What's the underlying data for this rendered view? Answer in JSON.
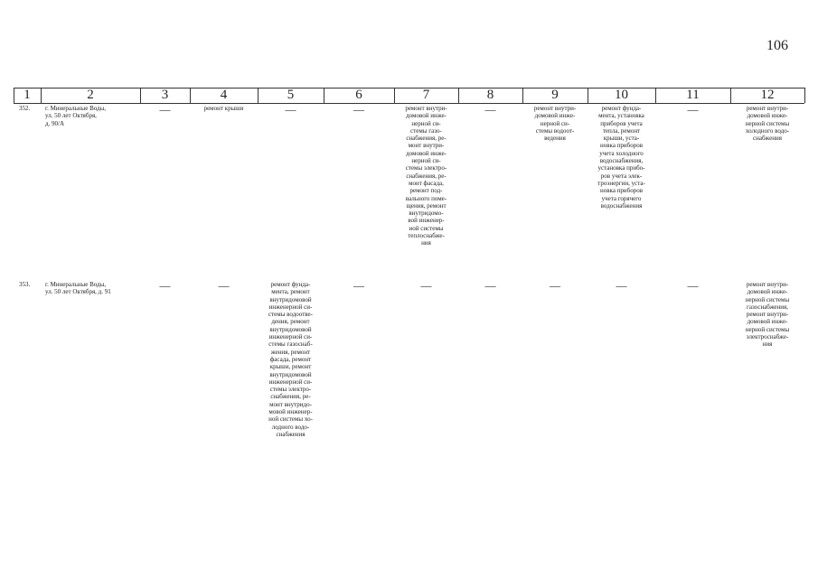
{
  "page_number": "106",
  "table": {
    "header": [
      "1",
      "2",
      "3",
      "4",
      "5",
      "6",
      "7",
      "8",
      "9",
      "10",
      "11",
      "12"
    ],
    "rows": [
      [
        [
          "352."
        ],
        [
          "г. Минеральные Воды,",
          "ул. 50 лет Октября,",
          "д. 90/А"
        ],
        [
          "—"
        ],
        [
          "ремонт крыши"
        ],
        [
          "—"
        ],
        [
          "—"
        ],
        [
          "ремонт внутри-",
          "домовой инже-",
          "нерной си-",
          "стемы газо-",
          "снабжения, ре-",
          "монт внутри-",
          "домовой инже-",
          "нерной си-",
          "стемы электро-",
          "снабжения, ре-",
          "монт фасада,",
          "ремонт под-",
          "вального поме-",
          "щения, ремонт",
          "внутридомо-",
          "вой инженер-",
          "ной системы",
          "теплоснабже-",
          "ния"
        ],
        [
          "—"
        ],
        [
          "ремонт внутри-",
          "домовой инже-",
          "нерной си-",
          "стемы водоот-",
          "ведения"
        ],
        [
          "ремонт фунда-",
          "мента, установка",
          "приборов учета",
          "тепла, ремонт",
          "крыши, уста-",
          "новка приборов",
          "учета холодного",
          "водоснабжения,",
          "установка прибо-",
          "ров учета элек-",
          "троэнергии, уста-",
          "новка приборов",
          "учета горячего",
          "водоснабжения"
        ],
        [
          "—"
        ],
        [
          "ремонт внутри-",
          "домовой инже-",
          "нерной системы",
          "холодного водо-",
          "снабжения"
        ]
      ],
      [
        [
          "353."
        ],
        [
          "г. Минеральные Воды,",
          "ул. 50 лет Октября, д. 91"
        ],
        [
          "—"
        ],
        [
          "—"
        ],
        [
          "ремонт фунда-",
          "мента, ремонт",
          "внутридомовой",
          "инженерной си-",
          "стемы водоотве-",
          "дения, ремонт",
          "внутридомовой",
          "инженерной си-",
          "стемы газоснаб-",
          "жения, ремонт",
          "фасада, ремонт",
          "крыши, ремонт",
          "внутридомовой",
          "инженерной си-",
          "стемы электро-",
          "снабжения, ре-",
          "монт внутридо-",
          "мовой инженер-",
          "ной системы хо-",
          "лодного водо-",
          "снабжения"
        ],
        [
          "—"
        ],
        [
          "—"
        ],
        [
          "—"
        ],
        [
          "—"
        ],
        [
          "—"
        ],
        [
          "—"
        ],
        [
          "ремонт внутри-",
          "домовой инже-",
          "нерной системы",
          "газоснабжения,",
          "ремонт внутри-",
          "домовой инже-",
          "нерной системы",
          "электроснабже-",
          "ния"
        ]
      ]
    ]
  }
}
